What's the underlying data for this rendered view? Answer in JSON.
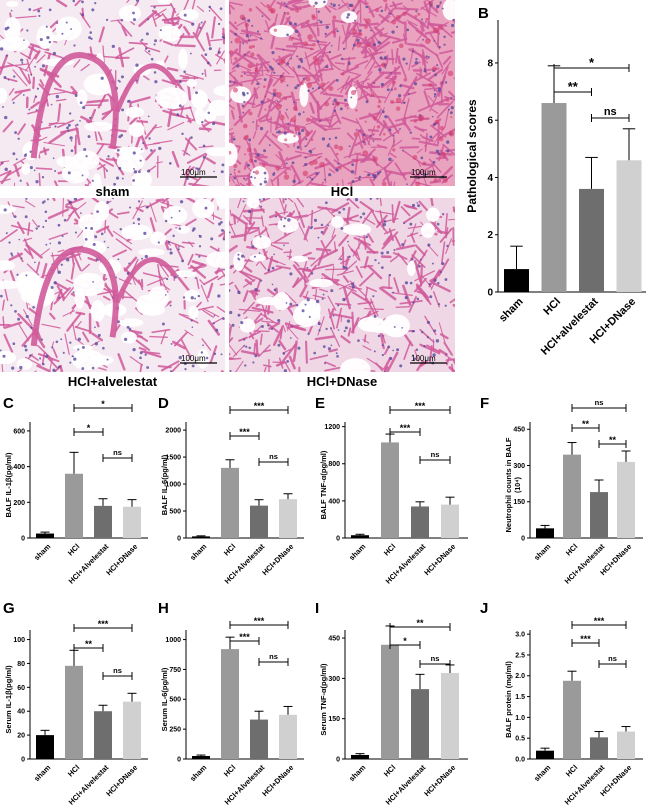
{
  "figure": {
    "panel_letters": [
      "A",
      "B",
      "C",
      "D",
      "E",
      "F",
      "G",
      "H",
      "I",
      "J"
    ],
    "micrographs": [
      {
        "caption": "sham",
        "scale_label": "100μm",
        "style": "sham"
      },
      {
        "caption": "HCl",
        "scale_label": "100μm",
        "style": "hcl"
      },
      {
        "caption": "HCl+alvelestat",
        "scale_label": "100μm",
        "style": "alv"
      },
      {
        "caption": "HCl+DNase",
        "scale_label": "100μm",
        "style": "dnase"
      }
    ]
  },
  "colors": {
    "sham": "#000000",
    "hcl": "#9a9a9a",
    "alvelestat": "#6e6e6e",
    "dnase": "#d0d0d0",
    "tissue": "#d05a9a",
    "nuclei": "#5a4a9e",
    "blood": "#d63a6a"
  },
  "chart_data": [
    {
      "panel": "B",
      "type": "bar",
      "categories": [
        "sham",
        "HCl",
        "HCl+alvelestat",
        "HCl+DNase"
      ],
      "values": [
        0.8,
        6.6,
        3.6,
        4.6
      ],
      "errors": [
        0.8,
        1.3,
        1.1,
        1.1
      ],
      "ylabel": "Pathological scores",
      "ylim": [
        0,
        9.5
      ],
      "yticks": [
        "0",
        "2",
        "4",
        "6",
        "8"
      ],
      "ytick_values": [
        0,
        2,
        4,
        6,
        8
      ],
      "significance": [
        {
          "from": 1,
          "to": 3,
          "label": "*"
        },
        {
          "from": 1,
          "to": 2,
          "label": "**"
        },
        {
          "from": 2,
          "to": 3,
          "label": "ns"
        }
      ]
    },
    {
      "panel": "C",
      "type": "bar",
      "categories": [
        "sham",
        "HCl",
        "HCl+Alvelestat",
        "HCl+DNase"
      ],
      "values": [
        25,
        360,
        180,
        175
      ],
      "errors": [
        8,
        120,
        40,
        40
      ],
      "ylabel": "BALF IL-1β(pg/ml)",
      "ylim": [
        0,
        650
      ],
      "yticks": [
        "0",
        "200",
        "400",
        "600"
      ],
      "ytick_values": [
        0,
        200,
        400,
        600
      ],
      "significance": [
        {
          "from": 1,
          "to": 3,
          "label": "*"
        },
        {
          "from": 1,
          "to": 2,
          "label": "*"
        },
        {
          "from": 2,
          "to": 3,
          "label": "ns"
        }
      ]
    },
    {
      "panel": "D",
      "type": "bar",
      "categories": [
        "sham",
        "HCl",
        "HCl+Alvelestat",
        "HCl+DNase"
      ],
      "values": [
        30,
        1300,
        600,
        720
      ],
      "errors": [
        10,
        150,
        110,
        100
      ],
      "ylabel": "BALF IL-6(pg/ml)",
      "ylim": [
        0,
        2150
      ],
      "yticks": [
        "0",
        "500",
        "1000",
        "1500",
        "2000"
      ],
      "ytick_values": [
        0,
        500,
        1000,
        1500,
        2000
      ],
      "significance": [
        {
          "from": 1,
          "to": 3,
          "label": "***"
        },
        {
          "from": 1,
          "to": 2,
          "label": "***"
        },
        {
          "from": 2,
          "to": 3,
          "label": "ns"
        }
      ]
    },
    {
      "panel": "E",
      "type": "bar",
      "categories": [
        "sham",
        "HCl",
        "HCl+Alvelestat",
        "HCl+DNase"
      ],
      "values": [
        30,
        1030,
        340,
        360
      ],
      "errors": [
        10,
        90,
        50,
        80
      ],
      "ylabel": "BALF TNF-α(pg/ml)",
      "ylim": [
        0,
        1250
      ],
      "yticks": [
        "0",
        "400",
        "800",
        "1200"
      ],
      "ytick_values": [
        0,
        400,
        800,
        1200
      ],
      "significance": [
        {
          "from": 1,
          "to": 3,
          "label": "***"
        },
        {
          "from": 1,
          "to": 2,
          "label": "***"
        },
        {
          "from": 2,
          "to": 3,
          "label": "ns"
        }
      ]
    },
    {
      "panel": "F",
      "type": "bar",
      "categories": [
        "sham",
        "HCl",
        "HCl+Alvelestat",
        "HCl+DNase"
      ],
      "values": [
        40,
        345,
        190,
        315
      ],
      "errors": [
        12,
        50,
        50,
        45
      ],
      "ylabel": "Neutrophil counts in BALF",
      "ylabel2": "(10⁴)",
      "ylim": [
        0,
        480
      ],
      "yticks": [
        "0",
        "150",
        "300",
        "450"
      ],
      "ytick_values": [
        0,
        150,
        300,
        450
      ],
      "significance": [
        {
          "from": 1,
          "to": 3,
          "label": "ns"
        },
        {
          "from": 1,
          "to": 2,
          "label": "**"
        },
        {
          "from": 2,
          "to": 3,
          "label": "**"
        }
      ]
    },
    {
      "panel": "G",
      "type": "bar",
      "categories": [
        "sham",
        "HCl",
        "HCl+Alvelestat",
        "HCl+DNase"
      ],
      "values": [
        20,
        78,
        40,
        48
      ],
      "errors": [
        4,
        13,
        5,
        7
      ],
      "ylabel": "Serum IL-1β(pg/ml)",
      "ylim": [
        0,
        108
      ],
      "yticks": [
        "0",
        "20",
        "40",
        "60",
        "80",
        "100"
      ],
      "ytick_values": [
        0,
        20,
        40,
        60,
        80,
        100
      ],
      "significance": [
        {
          "from": 1,
          "to": 3,
          "label": "***"
        },
        {
          "from": 1,
          "to": 2,
          "label": "**"
        },
        {
          "from": 2,
          "to": 3,
          "label": "ns"
        }
      ]
    },
    {
      "panel": "H",
      "type": "bar",
      "categories": [
        "sham",
        "HCl",
        "HCl+Alvelestat",
        "HCl+DNase"
      ],
      "values": [
        25,
        920,
        330,
        370
      ],
      "errors": [
        8,
        100,
        70,
        70
      ],
      "ylabel": "Serum IL-6(pg/ml)",
      "ylim": [
        0,
        1080
      ],
      "yticks": [
        "0",
        "250",
        "500",
        "750",
        "1000"
      ],
      "ytick_values": [
        0,
        250,
        500,
        750,
        1000
      ],
      "significance": [
        {
          "from": 1,
          "to": 3,
          "label": "***"
        },
        {
          "from": 1,
          "to": 2,
          "label": "***"
        },
        {
          "from": 2,
          "to": 3,
          "label": "ns"
        }
      ]
    },
    {
      "panel": "I",
      "type": "bar",
      "categories": [
        "sham",
        "HCl",
        "HCl+Alvelestat",
        "HCl+DNase"
      ],
      "values": [
        15,
        425,
        260,
        320
      ],
      "errors": [
        5,
        70,
        55,
        30
      ],
      "ylabel": "Serum TNF-α(pg/ml)",
      "ylim": [
        0,
        480
      ],
      "yticks": [
        "0",
        "150",
        "300",
        "450"
      ],
      "ytick_values": [
        0,
        150,
        300,
        450
      ],
      "significance": [
        {
          "from": 1,
          "to": 3,
          "label": "**"
        },
        {
          "from": 1,
          "to": 2,
          "label": "*"
        },
        {
          "from": 2,
          "to": 3,
          "label": "ns"
        }
      ]
    },
    {
      "panel": "J",
      "type": "bar",
      "categories": [
        "sham",
        "HCl",
        "HCl+Alvelestat",
        "HCl+DNase"
      ],
      "values": [
        0.2,
        1.88,
        0.52,
        0.66
      ],
      "errors": [
        0.06,
        0.23,
        0.14,
        0.12
      ],
      "ylabel": "BALF protein (mg/ml)",
      "ylim": [
        0,
        3.1
      ],
      "yticks": [
        "0.0",
        "0.5",
        "1.0",
        "1.5",
        "2.0",
        "2.5",
        "3.0"
      ],
      "ytick_values": [
        0,
        0.5,
        1.0,
        1.5,
        2.0,
        2.5,
        3.0
      ],
      "significance": [
        {
          "from": 1,
          "to": 3,
          "label": "***"
        },
        {
          "from": 1,
          "to": 2,
          "label": "***"
        },
        {
          "from": 2,
          "to": 3,
          "label": "ns"
        }
      ]
    }
  ]
}
